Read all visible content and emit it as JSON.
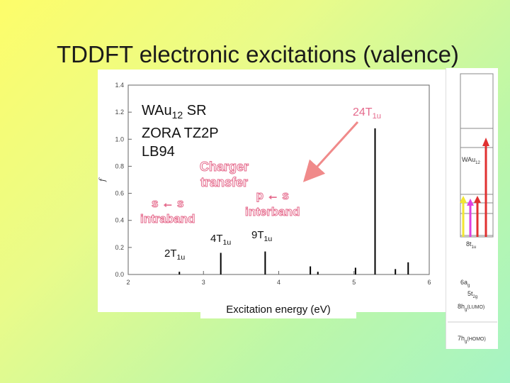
{
  "title": "TDDFT electronic excitations (valence)",
  "colors": {
    "pink": "#e56a8c",
    "arrow_pink": "#f08a8a",
    "mo_yellow": "#f2e632",
    "mo_magenta": "#e040e0",
    "mo_red": "#e03030"
  },
  "chart_data": {
    "type": "bar",
    "title": "",
    "xlabel": "Excitation energy (eV)",
    "ylabel": "f",
    "xlim": [
      2,
      6
    ],
    "ylim": [
      0,
      1.4
    ],
    "x_ticks": [
      2,
      3,
      4,
      5,
      6
    ],
    "y_ticks": [
      0.0,
      0.2,
      0.4,
      0.6,
      0.8,
      1.0,
      1.2,
      1.4
    ],
    "x_tick_labels": [
      "2",
      "3",
      "4",
      "5",
      "6"
    ],
    "y_tick_labels": [
      "0.0",
      "0.2",
      "0.4",
      "0.6",
      "0.8",
      "1.0",
      "1.2",
      "1.4"
    ],
    "grid": false,
    "series": [
      {
        "values": [
          {
            "x": 2.68,
            "y": 0.02
          },
          {
            "x": 3.23,
            "y": 0.16
          },
          {
            "x": 3.82,
            "y": 0.17
          },
          {
            "x": 4.42,
            "y": 0.06
          },
          {
            "x": 4.52,
            "y": 0.02
          },
          {
            "x": 5.02,
            "y": 0.05
          },
          {
            "x": 5.28,
            "y": 1.08
          },
          {
            "x": 5.55,
            "y": 0.04
          },
          {
            "x": 5.72,
            "y": 0.09
          }
        ]
      }
    ]
  },
  "annotations": {
    "method_line1": "WAu",
    "method_line1_sub": "12",
    "method_line1_tail": " SR",
    "method_line2": "ZORA TZ2P",
    "method_line3": "LB94",
    "charge_transfer": "Charger\ntransfer",
    "ss_symbol": "s ← s",
    "ss_text": "intraband",
    "ps_symbol": "p ← s",
    "ps_text": "interband",
    "peak_2t": "2T",
    "peak_2t_sub": "1u",
    "peak_4t": "4T",
    "peak_4t_sub": "1u",
    "peak_9t": "9T",
    "peak_9t_sub": "1u",
    "peak_24t": "24T",
    "peak_24t_sub": "1u"
  },
  "mo_diagram": {
    "wau_label": "WAu",
    "wau_sub": "12",
    "t1u_label": "8t",
    "t1u_sub": "1u",
    "ag_label": "6a",
    "ag_sub": "g",
    "t2g_label": "5t",
    "t2g_sub": "2g",
    "lumo_label": "8h",
    "lumo_sub": "g",
    "lumo_tag": "(LUMO)",
    "homo_label": "7h",
    "homo_sub": "g",
    "homo_tag": "(HOMO)"
  }
}
